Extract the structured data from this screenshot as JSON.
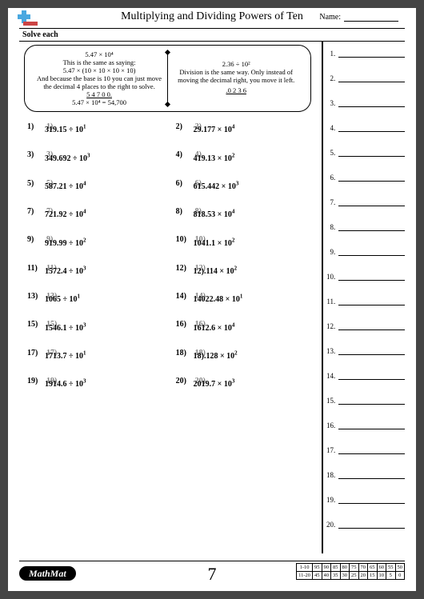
{
  "header": {
    "title": "Multiplying and Dividing Powers of Ten",
    "name_label": "Name:"
  },
  "instruction": "Solve each",
  "example": {
    "left": {
      "l1": "5.47 × 10⁴",
      "l2": "This is the same as saying:",
      "l3": "5.47 × (10 × 10 × 10 × 10)",
      "l4": "And because the base is 10 you can just move",
      "l5": "the decimal 4 places to the right to solve.",
      "l6": "5 4 7 0 0.",
      "l7": "5.47 × 10⁴ = 54,700"
    },
    "right": {
      "l1": "2.36 ÷ 10²",
      "l2": "Division is the same way. Only instead of",
      "l3": "moving the decimal right, you move it left.",
      "l4": ".0 2 3 6"
    }
  },
  "problems": [
    {
      "n": "1)",
      "g": "1)",
      "t": "319.15 ÷ 10",
      "e": "1"
    },
    {
      "n": "3)",
      "g": "3)",
      "t": "349.692 ÷ 10",
      "e": "3"
    },
    {
      "n": "5)",
      "g": "5)",
      "t": "587.21 ÷ 10",
      "e": "4"
    },
    {
      "n": "7)",
      "g": "7)",
      "t": "721.92 ÷ 10",
      "e": "4"
    },
    {
      "n": "9)",
      "g": "9)",
      "t": "919.99 ÷ 10",
      "e": "2"
    },
    {
      "n": "11)",
      "g": "11)",
      "t": "1572.4 ÷ 10",
      "e": "3"
    },
    {
      "n": "13)",
      "g": "13)",
      "t": "1065 ÷ 10",
      "e": "1"
    },
    {
      "n": "15)",
      "g": "15)",
      "t": "1546.1 ÷ 10",
      "e": "3"
    },
    {
      "n": "17)",
      "g": "17)",
      "t": "1713.7 ÷ 10",
      "e": "1"
    },
    {
      "n": "19)",
      "g": "19)",
      "t": "1914.6 ÷ 10",
      "e": "3"
    },
    {
      "n": "2)",
      "g": "2)",
      "t": "29.177 × 10",
      "e": "4"
    },
    {
      "n": "4)",
      "g": "4)",
      "t": "419.13 × 10",
      "e": "2"
    },
    {
      "n": "6)",
      "g": "6)",
      "t": "615.442 × 10",
      "e": "3"
    },
    {
      "n": "8)",
      "g": "8)",
      "t": "818.53 × 10",
      "e": "4"
    },
    {
      "n": "10)",
      "g": "10)",
      "t": "1041.1 × 10",
      "e": "2"
    },
    {
      "n": "12)",
      "g": "12)",
      "t": "12).114 × 10",
      "e": "2"
    },
    {
      "n": "14)",
      "g": "14)",
      "t": "14022.48 × 10",
      "e": "1"
    },
    {
      "n": "16)",
      "g": "16)",
      "t": "1612.6 × 10",
      "e": "4"
    },
    {
      "n": "18)",
      "g": "18)",
      "t": "18).128 × 10",
      "e": "2"
    },
    {
      "n": "20)",
      "g": "20)",
      "t": "2019.7 × 10",
      "e": "3"
    }
  ],
  "answer_count": 20,
  "footer": {
    "brand": "MathMat",
    "page_number": "7",
    "score_rows": [
      {
        "lbl": "1-10",
        "vals": [
          "95",
          "90",
          "85",
          "80",
          "75",
          "70",
          "65",
          "60",
          "55",
          "50"
        ]
      },
      {
        "lbl": "11-20",
        "vals": [
          "45",
          "40",
          "35",
          "30",
          "25",
          "20",
          "15",
          "10",
          "5",
          "0"
        ]
      }
    ]
  }
}
